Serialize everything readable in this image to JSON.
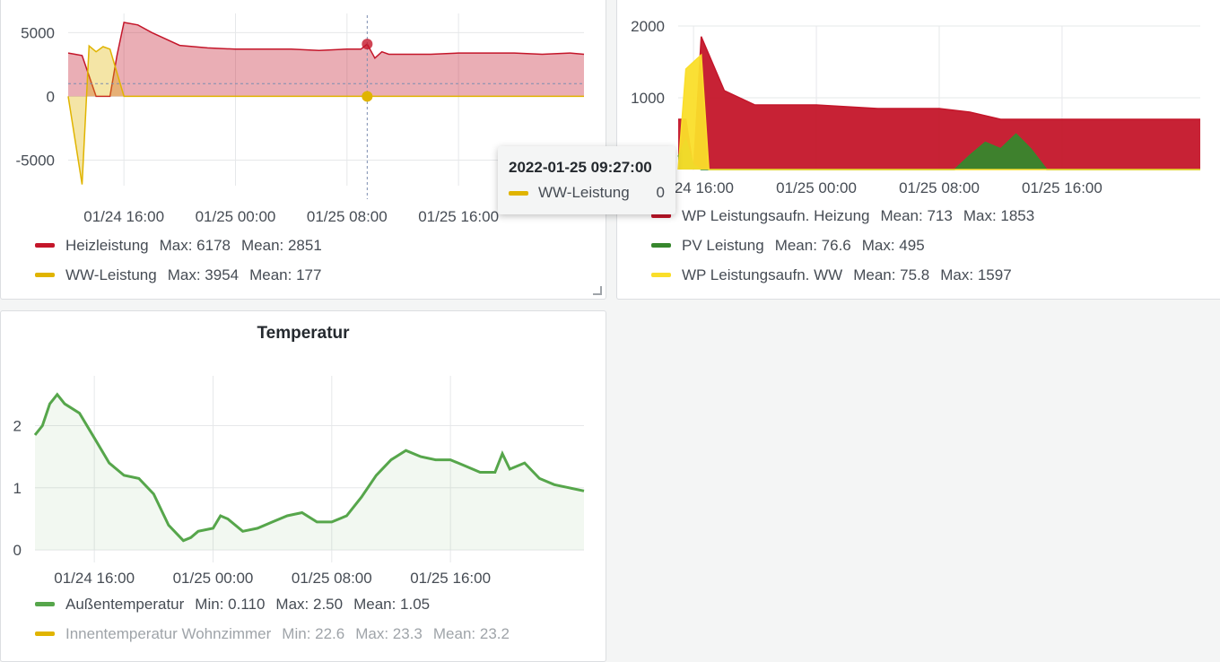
{
  "panels": {
    "heiz": {
      "title": "",
      "legend": [
        {
          "name": "Heizleistung",
          "color": "#c4162a",
          "stats": [
            "Max: 6178",
            "Mean: 2851"
          ]
        },
        {
          "name": "WW-Leistung",
          "color": "#e0b400",
          "stats": [
            "Max: 3954",
            "Mean: 177"
          ]
        }
      ],
      "tooltip": {
        "time": "2022-01-25 09:27:00",
        "series": "WW-Leistung",
        "value": "0",
        "color": "#e0b400"
      }
    },
    "wp": {
      "title": "",
      "legend": [
        {
          "name": "WP Leistungsaufn. Heizung",
          "color": "#c4162a",
          "stats": [
            "Mean: 713",
            "Max: 1853"
          ]
        },
        {
          "name": "PV Leistung",
          "color": "#37872d",
          "stats": [
            "Mean: 76.6",
            "Max: 495"
          ]
        },
        {
          "name": "WP Leistungsaufn. WW",
          "color": "#fade2a",
          "stats": [
            "Mean: 75.8",
            "Max: 1597"
          ]
        }
      ]
    },
    "temp": {
      "title": "Temperatur",
      "legend": [
        {
          "name": "Außentemperatur",
          "color": "#56a64b",
          "stats": [
            "Min: 0.110",
            "Max: 2.50",
            "Mean: 1.05"
          ],
          "dim": false
        },
        {
          "name": "Innentemperatur Wohnzimmer",
          "color": "#e0b400",
          "stats": [
            "Min: 22.6",
            "Max: 23.3",
            "Mean: 23.2"
          ],
          "dim": true
        }
      ]
    }
  },
  "chart_data": [
    {
      "type": "area",
      "title": "",
      "x_ticks": [
        "01/24 16:00",
        "01/25 00:00",
        "01/25 08:00",
        "01/25 16:00"
      ],
      "x_range": [
        "01/24 12:00",
        "01/26 01:00"
      ],
      "y_ticks": [
        "5000",
        "0",
        "-5000"
      ],
      "ylim": [
        -7000,
        6500
      ],
      "grid": true,
      "legend_position": "bottom",
      "series": [
        {
          "name": "Heizleistung",
          "color": "#c4162a",
          "x": [
            "01/24 12:00",
            "01/24 12:30",
            "01/24 13:00",
            "01/24 14:00",
            "01/24 15:00",
            "01/24 15:30",
            "01/24 16:00",
            "01/24 17:00",
            "01/24 18:00",
            "01/24 20:00",
            "01/24 22:00",
            "01/25 00:00",
            "01/25 02:00",
            "01/25 04:00",
            "01/25 06:00",
            "01/25 08:00",
            "01/25 09:00",
            "01/25 09:27",
            "01/25 10:00",
            "01/25 10:30",
            "01/25 11:00",
            "01/25 14:00",
            "01/25 16:00",
            "01/25 18:00",
            "01/25 20:00",
            "01/25 22:00",
            "01/26 00:00",
            "01/26 01:00"
          ],
          "values": [
            3400,
            3300,
            3200,
            0,
            0,
            3200,
            5800,
            5600,
            5000,
            4000,
            3800,
            3700,
            3700,
            3700,
            3600,
            3700,
            3700,
            4100,
            3000,
            3500,
            3300,
            3300,
            3400,
            3400,
            3400,
            3300,
            3400,
            3300
          ]
        },
        {
          "name": "WW-Leistung",
          "color": "#e0b400",
          "x": [
            "01/24 12:00",
            "01/24 13:00",
            "01/24 13:30",
            "01/24 14:00",
            "01/24 14:30",
            "01/24 15:00",
            "01/24 16:00",
            "01/25 09:27",
            "01/26 01:00"
          ],
          "values": [
            0,
            -6900,
            3954,
            3500,
            3900,
            3700,
            0,
            0,
            0
          ]
        }
      ]
    },
    {
      "type": "area",
      "title": "",
      "x_ticks": [
        "01/24 16:00",
        "01/25 00:00",
        "01/25 08:00",
        "01/25 16:00"
      ],
      "x_range": [
        "01/24 15:00",
        "01/26 01:00"
      ],
      "y_ticks": [
        "2000",
        "1000"
      ],
      "ylim": [
        0,
        2000
      ],
      "grid": true,
      "legend_position": "bottom",
      "series": [
        {
          "name": "WP Leistungsaufn. Heizung",
          "color": "#c4162a",
          "x": [
            "01/24 15:00",
            "01/24 15:30",
            "01/24 16:00",
            "01/24 16:30",
            "01/24 18:00",
            "01/24 20:00",
            "01/25 00:00",
            "01/25 04:00",
            "01/25 08:00",
            "01/25 10:00",
            "01/25 12:00",
            "01/25 16:00",
            "01/25 20:00",
            "01/26 01:00"
          ],
          "values": [
            700,
            700,
            0,
            1853,
            1100,
            900,
            900,
            850,
            850,
            800,
            700,
            700,
            700,
            700
          ]
        },
        {
          "name": "PV Leistung",
          "color": "#37872d",
          "x": [
            "01/24 15:00",
            "01/24 15:30",
            "01/24 16:00",
            "01/24 16:30",
            "01/25 09:00",
            "01/25 10:00",
            "01/25 11:00",
            "01/25 12:00",
            "01/25 13:00",
            "01/25 13:30",
            "01/25 14:00",
            "01/25 15:00",
            "01/26 01:00"
          ],
          "values": [
            180,
            420,
            60,
            0,
            0,
            200,
            380,
            290,
            495,
            390,
            280,
            0,
            0
          ]
        },
        {
          "name": "WP Leistungsaufn. WW",
          "color": "#fade2a",
          "x": [
            "01/24 15:00",
            "01/24 15:30",
            "01/24 16:00",
            "01/24 16:30",
            "01/24 17:00",
            "01/24 18:00",
            "01/26 01:00"
          ],
          "values": [
            0,
            1400,
            1500,
            1597,
            0,
            0,
            0
          ]
        }
      ]
    },
    {
      "type": "line",
      "title": "Temperatur",
      "x_ticks": [
        "01/24 16:00",
        "01/25 00:00",
        "01/25 08:00",
        "01/25 16:00"
      ],
      "x_range": [
        "01/24 12:00",
        "01/26 01:00"
      ],
      "y_ticks": [
        "2",
        "1",
        "0"
      ],
      "ylim": [
        -0.2,
        2.8
      ],
      "grid": true,
      "legend_position": "bottom",
      "series": [
        {
          "name": "Außentemperatur",
          "color": "#56a64b",
          "x": [
            "01/24 12:00",
            "01/24 12:30",
            "01/24 13:00",
            "01/24 13:30",
            "01/24 14:00",
            "01/24 15:00",
            "01/24 16:00",
            "01/24 17:00",
            "01/24 18:00",
            "01/24 19:00",
            "01/24 20:00",
            "01/24 21:00",
            "01/24 22:00",
            "01/24 22:30",
            "01/24 23:00",
            "01/25 00:00",
            "01/25 00:30",
            "01/25 01:00",
            "01/25 02:00",
            "01/25 03:00",
            "01/25 04:00",
            "01/25 05:00",
            "01/25 06:00",
            "01/25 07:00",
            "01/25 08:00",
            "01/25 09:00",
            "01/25 10:00",
            "01/25 11:00",
            "01/25 12:00",
            "01/25 13:00",
            "01/25 14:00",
            "01/25 15:00",
            "01/25 16:00",
            "01/25 17:00",
            "01/25 18:00",
            "01/25 19:00",
            "01/25 19:30",
            "01/25 20:00",
            "01/25 21:00",
            "01/25 22:00",
            "01/25 23:00",
            "01/26 00:00",
            "01/26 01:00"
          ],
          "values": [
            1.85,
            2.0,
            2.35,
            2.5,
            2.35,
            2.2,
            1.8,
            1.4,
            1.2,
            1.15,
            0.9,
            0.4,
            0.15,
            0.2,
            0.3,
            0.35,
            0.55,
            0.5,
            0.3,
            0.35,
            0.45,
            0.55,
            0.6,
            0.45,
            0.45,
            0.55,
            0.85,
            1.2,
            1.45,
            1.6,
            1.5,
            1.45,
            1.45,
            1.35,
            1.25,
            1.25,
            1.55,
            1.3,
            1.4,
            1.15,
            1.05,
            1.0,
            0.95
          ]
        },
        {
          "name": "Innentemperatur Wohnzimmer",
          "color": "#e0b400",
          "hidden": true,
          "x": [],
          "values": []
        }
      ]
    }
  ]
}
